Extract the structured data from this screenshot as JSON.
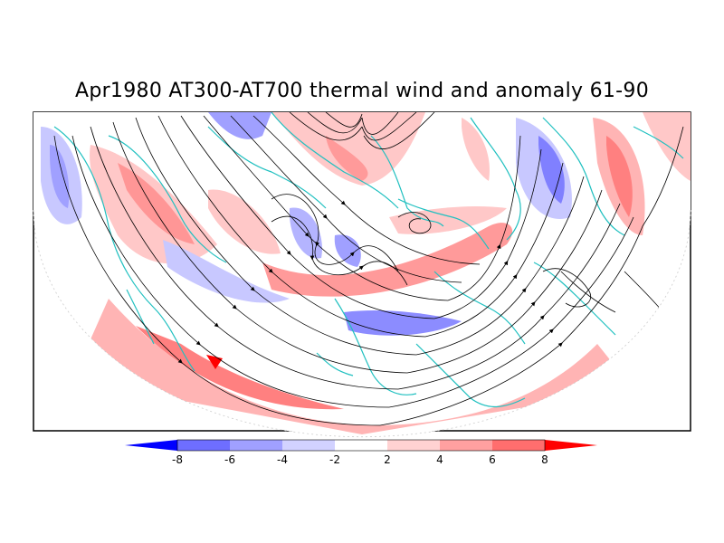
{
  "title": "Apr1980 AT300-AT700 thermal wind and anomaly 61-90",
  "colorbar": {
    "colors": [
      "#0000ff",
      "#6e6eff",
      "#a0a0ff",
      "#d2d2ff",
      "#ffffff",
      "#ffd2d2",
      "#ffa0a0",
      "#ff6e6e",
      "#ff0000"
    ],
    "tick_labels": [
      "-8",
      "-6",
      "-4",
      "-2",
      "2",
      "4",
      "6",
      "8"
    ]
  },
  "coastline_color": "#20c0c0"
}
